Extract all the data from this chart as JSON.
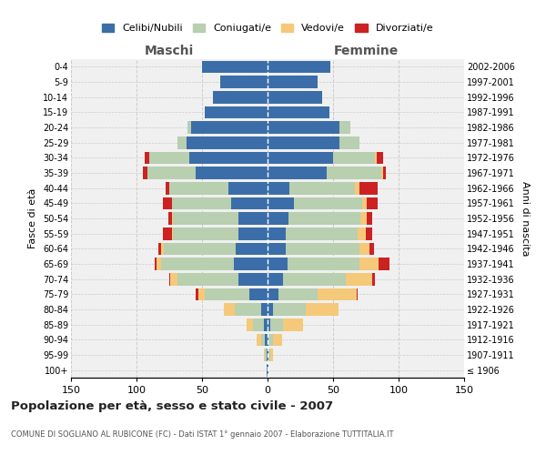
{
  "age_groups": [
    "100+",
    "95-99",
    "90-94",
    "85-89",
    "80-84",
    "75-79",
    "70-74",
    "65-69",
    "60-64",
    "55-59",
    "50-54",
    "45-49",
    "40-44",
    "35-39",
    "30-34",
    "25-29",
    "20-24",
    "15-19",
    "10-14",
    "5-9",
    "0-4"
  ],
  "birth_years": [
    "≤ 1906",
    "1907-1911",
    "1912-1916",
    "1917-1921",
    "1922-1926",
    "1927-1931",
    "1932-1936",
    "1937-1941",
    "1942-1946",
    "1947-1951",
    "1952-1956",
    "1957-1961",
    "1962-1966",
    "1967-1971",
    "1972-1976",
    "1977-1981",
    "1982-1986",
    "1987-1991",
    "1992-1996",
    "1997-2001",
    "2002-2006"
  ],
  "maschi": {
    "celibi": [
      1,
      1,
      2,
      3,
      5,
      14,
      22,
      26,
      24,
      22,
      22,
      28,
      30,
      55,
      60,
      62,
      58,
      48,
      42,
      36,
      50
    ],
    "coniugati": [
      0,
      1,
      3,
      8,
      20,
      34,
      47,
      55,
      55,
      50,
      50,
      45,
      45,
      37,
      30,
      7,
      3,
      0,
      0,
      0,
      0
    ],
    "vedovi": [
      0,
      1,
      3,
      5,
      8,
      5,
      5,
      4,
      2,
      1,
      1,
      0,
      0,
      0,
      0,
      0,
      0,
      0,
      0,
      0,
      0
    ],
    "divorziati": [
      0,
      0,
      0,
      0,
      0,
      2,
      1,
      1,
      2,
      7,
      3,
      7,
      3,
      3,
      4,
      0,
      0,
      0,
      0,
      0,
      0
    ]
  },
  "femmine": {
    "nubili": [
      1,
      1,
      1,
      2,
      4,
      8,
      12,
      15,
      14,
      14,
      16,
      20,
      17,
      45,
      50,
      55,
      55,
      47,
      42,
      38,
      48
    ],
    "coniugate": [
      0,
      1,
      3,
      10,
      25,
      30,
      48,
      55,
      56,
      55,
      55,
      52,
      50,
      42,
      32,
      15,
      8,
      0,
      0,
      0,
      0
    ],
    "vedove": [
      0,
      2,
      7,
      15,
      25,
      30,
      20,
      15,
      8,
      6,
      5,
      4,
      3,
      1,
      1,
      0,
      0,
      0,
      0,
      0,
      0
    ],
    "divorziate": [
      0,
      0,
      0,
      0,
      0,
      1,
      2,
      8,
      3,
      5,
      4,
      8,
      14,
      2,
      5,
      0,
      0,
      0,
      0,
      0,
      0
    ]
  },
  "colors": {
    "celibi": "#3b6ea8",
    "coniugati": "#b8cfb0",
    "vedovi": "#f5c97a",
    "divorziati": "#cc2222"
  },
  "title": "Popolazione per età, sesso e stato civile - 2007",
  "subtitle": "COMUNE DI SOGLIANO AL RUBICONE (FC) - Dati ISTAT 1° gennaio 2007 - Elaborazione TUTTITALIA.IT",
  "xlabel_left": "Maschi",
  "xlabel_right": "Femmine",
  "ylabel_left": "Fasce di età",
  "ylabel_right": "Anni di nascita",
  "xlim": 150,
  "bg_color": "#ffffff",
  "plot_bg": "#f0f0f0",
  "grid_color": "#cccccc",
  "legend_labels": [
    "Celibi/Nubili",
    "Coniugati/e",
    "Vedovi/e",
    "Divorziati/e"
  ]
}
